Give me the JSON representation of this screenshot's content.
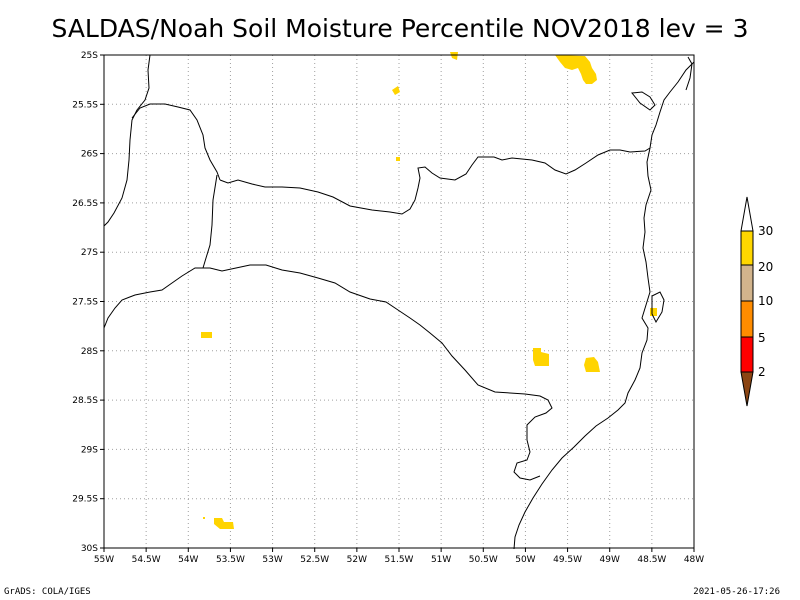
{
  "title": "SALDAS/Noah Soil Moisture Percentile NOV2018 lev = 3",
  "footer": {
    "left": "GrADS: COLA/IGES",
    "right": "2021-05-26-17:26"
  },
  "map": {
    "lon_range": [
      -55,
      -48
    ],
    "lat_range": [
      -30,
      -25
    ],
    "lon_ticks": [
      "55W",
      "54.5W",
      "54W",
      "53.5W",
      "53W",
      "52.5W",
      "52W",
      "51.5W",
      "51W",
      "50.5W",
      "50W",
      "49.5W",
      "49W",
      "48.5W",
      "48W"
    ],
    "lat_ticks": [
      "25S",
      "25.5S",
      "26S",
      "26.5S",
      "27S",
      "27.5S",
      "28S",
      "28.5S",
      "29S",
      "29.5S",
      "30S"
    ],
    "grid": true
  },
  "legend": {
    "placement": "right",
    "labels": [
      "30",
      "20",
      "10",
      "5",
      "2"
    ],
    "colors": {
      "c30": "#ffd700",
      "c20": "#d2b48c",
      "c10": "#ff8c00",
      "c5": "#ff0000",
      "c2": "#8b4513"
    }
  },
  "colors": {
    "fill": "#ffd400",
    "border": "#000000",
    "grid": "#a0a0a0"
  }
}
